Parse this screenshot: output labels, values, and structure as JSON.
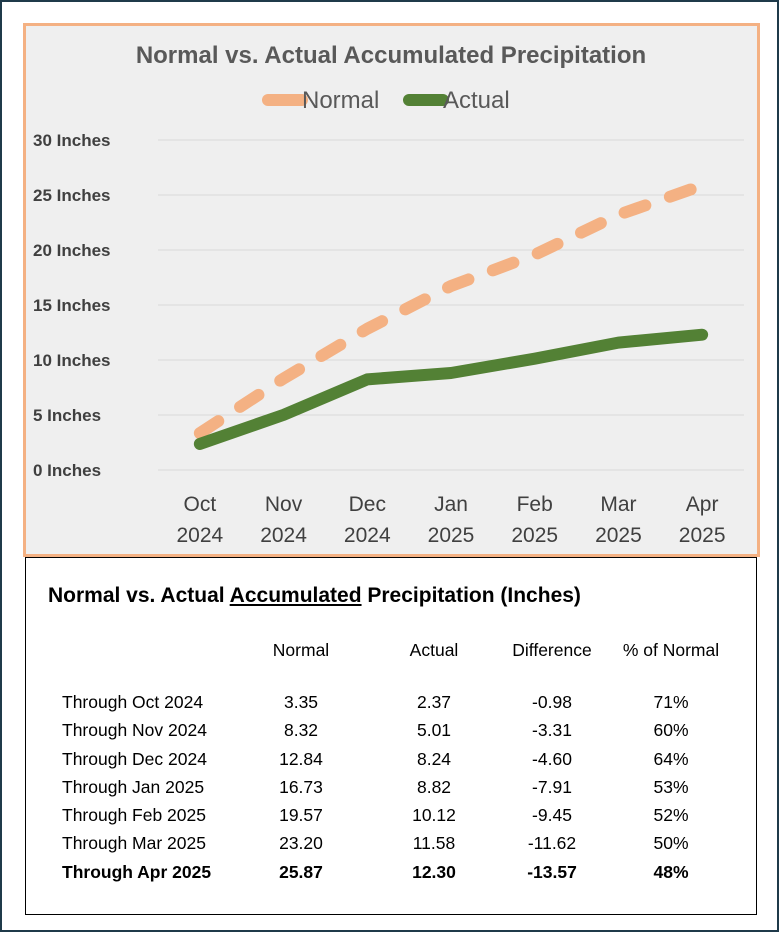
{
  "chart_data": {
    "type": "line",
    "title": "Normal vs. Actual Accumulated Precipitation",
    "categories": [
      [
        "Oct",
        "2024"
      ],
      [
        "Nov",
        "2024"
      ],
      [
        "Dec",
        "2024"
      ],
      [
        "Jan",
        "2025"
      ],
      [
        "Feb",
        "2025"
      ],
      [
        "Mar",
        "2025"
      ],
      [
        "Apr",
        "2025"
      ]
    ],
    "series": [
      {
        "name": "Normal",
        "values": [
          3.35,
          8.32,
          12.84,
          16.73,
          19.57,
          23.2,
          25.87
        ],
        "color": "#f4b183",
        "style": "dashed"
      },
      {
        "name": "Actual",
        "values": [
          2.37,
          5.01,
          8.24,
          8.82,
          10.12,
          11.58,
          12.3
        ],
        "color": "#538135",
        "style": "solid"
      }
    ],
    "yticks": [
      0,
      5,
      10,
      15,
      20,
      25,
      30
    ],
    "ytick_suffix": " Inches",
    "ylim": [
      0,
      30
    ],
    "grid": true,
    "legend_position": "top-center"
  },
  "table": {
    "title_pre": "Normal vs. Actual ",
    "title_underlined": "Accumulated",
    "title_post": " Precipitation (Inches)",
    "headers": [
      "Normal",
      "Actual",
      "Difference",
      "% of Normal"
    ],
    "rows": [
      {
        "label": "Through  Oct 2024",
        "normal": "3.35",
        "actual": "2.37",
        "difference": "-0.98",
        "pct": "71%"
      },
      {
        "label": "Through  Nov 2024",
        "normal": "8.32",
        "actual": "5.01",
        "difference": "-3.31",
        "pct": "60%"
      },
      {
        "label": "Through  Dec 2024",
        "normal": "12.84",
        "actual": "8.24",
        "difference": "-4.60",
        "pct": "64%"
      },
      {
        "label": "Through  Jan 2025",
        "normal": "16.73",
        "actual": "8.82",
        "difference": "-7.91",
        "pct": "53%"
      },
      {
        "label": "Through  Feb 2025",
        "normal": "19.57",
        "actual": "10.12",
        "difference": "-9.45",
        "pct": "52%"
      },
      {
        "label": "Through  Mar 2025",
        "normal": "23.20",
        "actual": "11.58",
        "difference": "-11.62",
        "pct": "50%"
      },
      {
        "label": "Through Apr 2025",
        "normal": "25.87",
        "actual": "12.30",
        "difference": "-13.57",
        "pct": "48%",
        "bold": true
      }
    ]
  }
}
